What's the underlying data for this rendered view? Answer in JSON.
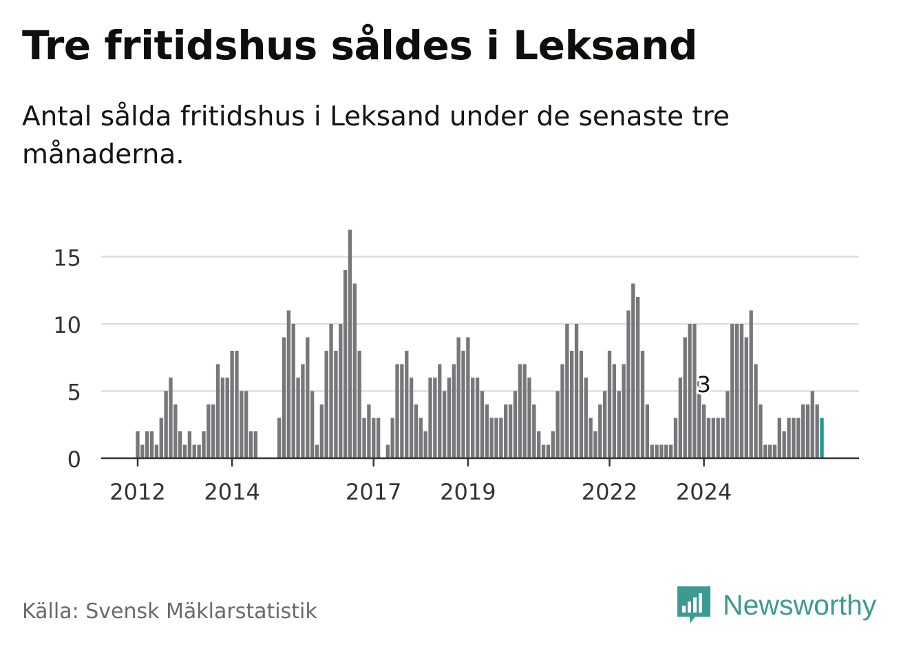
{
  "header": {
    "title": "Tre fritidshus såldes i Leksand",
    "subtitle": "Antal sålda fritidshus i Leksand under de senaste tre månaderna."
  },
  "footer": {
    "source": "Källa: Svensk Mäklarstatistik",
    "brand": "Newsworthy",
    "brand_icon": "bar-chart-speech-bubble-icon"
  },
  "colors": {
    "bar": "#77767a",
    "highlight": "#1f9a94",
    "gridline": "#dddddd",
    "axis": "#333333",
    "brand": "#3d9a92"
  },
  "chart_data": {
    "type": "bar",
    "title": "Tre fritidshus såldes i Leksand",
    "subtitle": "Antal sålda fritidshus i Leksand under de senaste tre månaderna.",
    "xlabel": "",
    "ylabel": "",
    "ylim": [
      0,
      17.5
    ],
    "yticks": [
      0,
      5,
      10,
      15
    ],
    "xticks": [
      {
        "label": "2012",
        "index": 0
      },
      {
        "label": "2014",
        "index": 20
      },
      {
        "label": "2017",
        "index": 50
      },
      {
        "label": "2019",
        "index": 70
      },
      {
        "label": "2022",
        "index": 100
      },
      {
        "label": "2024",
        "index": 120
      }
    ],
    "grid": true,
    "annotation": {
      "text": "3",
      "index": 120
    },
    "values": [
      2,
      1,
      2,
      2,
      1,
      3,
      5,
      6,
      4,
      2,
      1,
      2,
      1,
      1,
      2,
      4,
      4,
      7,
      6,
      6,
      8,
      8,
      5,
      5,
      2,
      2,
      0,
      0,
      0,
      0,
      3,
      9,
      11,
      10,
      6,
      7,
      9,
      5,
      1,
      4,
      8,
      10,
      8,
      10,
      14,
      17,
      13,
      8,
      3,
      4,
      3,
      3,
      0,
      1,
      3,
      7,
      7,
      8,
      6,
      4,
      3,
      2,
      6,
      6,
      7,
      5,
      6,
      7,
      9,
      8,
      9,
      6,
      6,
      5,
      4,
      3,
      3,
      3,
      4,
      4,
      5,
      7,
      7,
      6,
      4,
      2,
      1,
      1,
      2,
      5,
      7,
      10,
      8,
      10,
      8,
      6,
      3,
      2,
      4,
      5,
      8,
      7,
      5,
      7,
      11,
      13,
      12,
      8,
      4,
      1,
      1,
      1,
      1,
      1,
      3,
      6,
      9,
      10,
      10,
      6,
      4,
      3,
      3,
      3,
      3,
      5,
      10,
      10,
      10,
      9,
      11,
      7,
      4,
      1,
      1,
      1,
      3,
      2,
      3,
      3,
      3,
      4,
      4,
      5,
      4,
      3
    ],
    "highlight_last": true
  }
}
